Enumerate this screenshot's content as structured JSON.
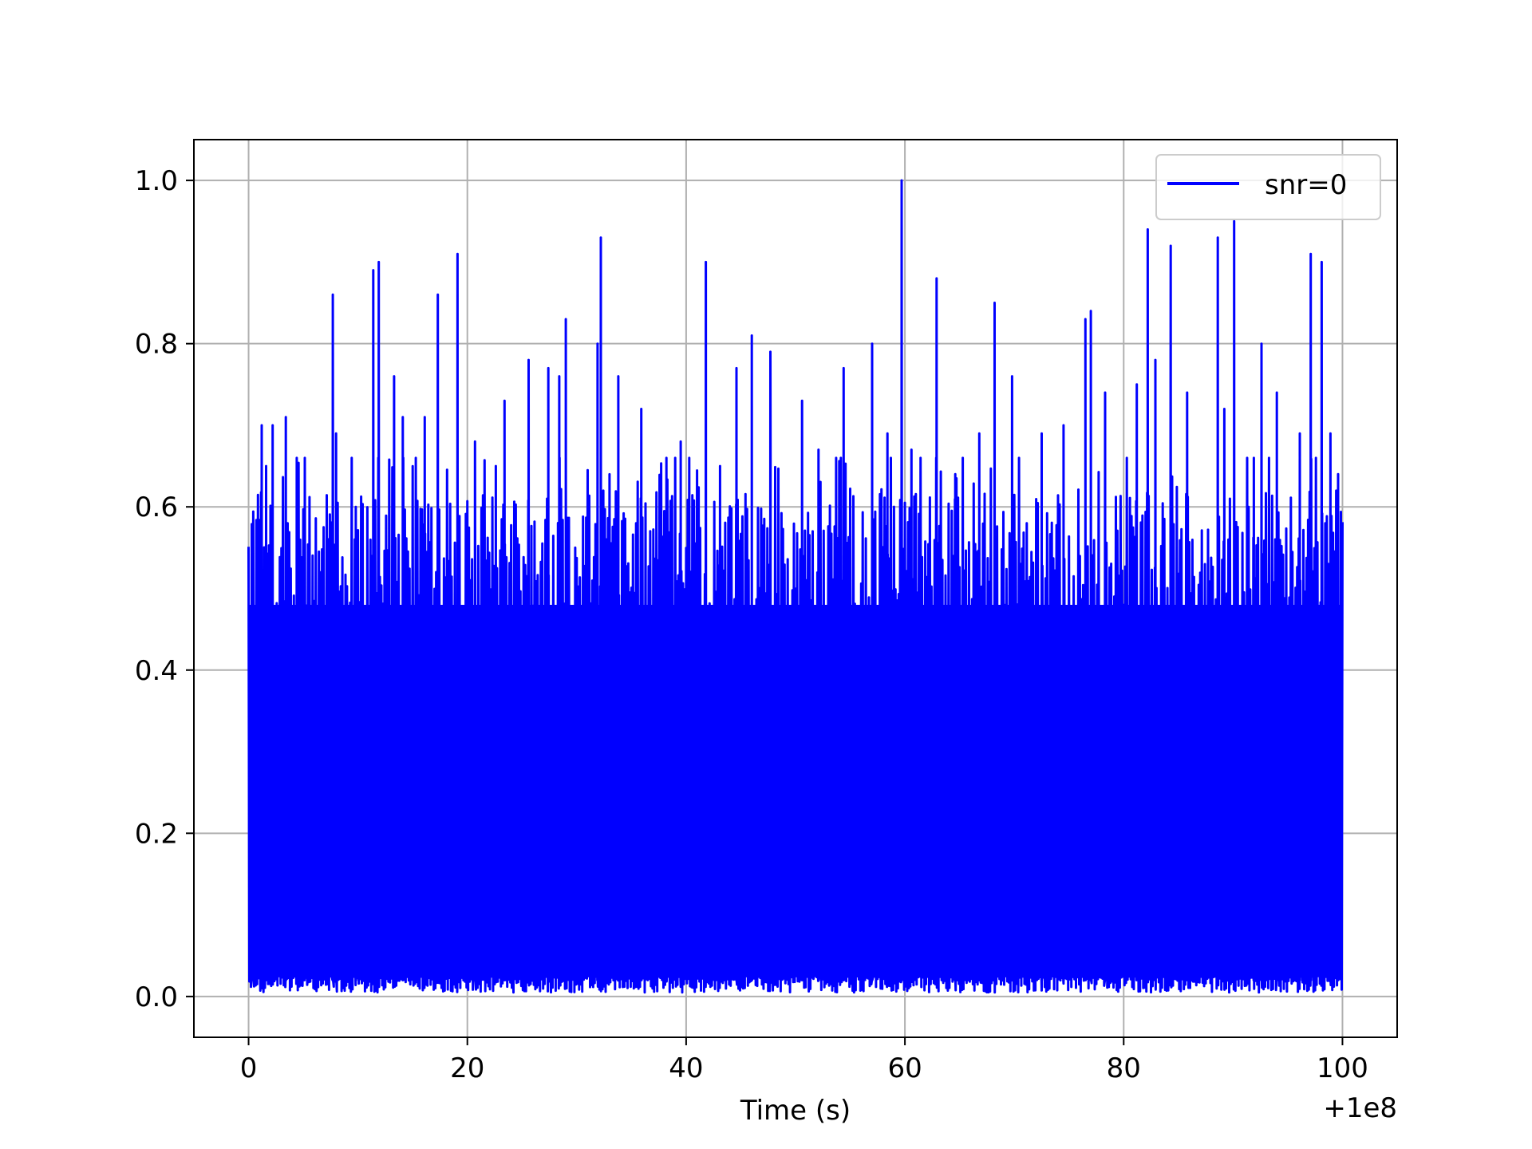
{
  "chart_data": {
    "type": "line",
    "title": "",
    "xlabel": "Time (s)",
    "ylabel": "",
    "x_offset_label": "+1e8",
    "xlim": [
      -5,
      105
    ],
    "ylim": [
      -0.05,
      1.05
    ],
    "x_ticks": [
      0,
      20,
      40,
      60,
      80,
      100
    ],
    "x_tick_labels": [
      "0",
      "20",
      "40",
      "60",
      "80",
      "100"
    ],
    "y_ticks": [
      0.0,
      0.2,
      0.4,
      0.6,
      0.8,
      1.0
    ],
    "y_tick_labels": [
      "0.0",
      "0.2",
      "0.4",
      "0.6",
      "0.8",
      "1.0"
    ],
    "grid": true,
    "legend_position": "top-right",
    "series": [
      {
        "name": "snr=0",
        "color": "#0000ff",
        "x_range": [
          0,
          100
        ],
        "y_min": 0.0,
        "y_max": 1.0,
        "peaks": [
          {
            "x": 0.3,
            "y": 0.53
          },
          {
            "x": 1.2,
            "y": 0.7
          },
          {
            "x": 1.6,
            "y": 0.65
          },
          {
            "x": 2.2,
            "y": 0.7
          },
          {
            "x": 3.4,
            "y": 0.71
          },
          {
            "x": 4.4,
            "y": 0.66
          },
          {
            "x": 5.1,
            "y": 0.59
          },
          {
            "x": 7.7,
            "y": 0.86
          },
          {
            "x": 8.0,
            "y": 0.69
          },
          {
            "x": 9.8,
            "y": 0.6
          },
          {
            "x": 11.4,
            "y": 0.89
          },
          {
            "x": 11.9,
            "y": 0.9
          },
          {
            "x": 13.3,
            "y": 0.76
          },
          {
            "x": 14.1,
            "y": 0.71
          },
          {
            "x": 16.1,
            "y": 0.71
          },
          {
            "x": 17.3,
            "y": 0.86
          },
          {
            "x": 19.1,
            "y": 0.91
          },
          {
            "x": 20.7,
            "y": 0.68
          },
          {
            "x": 22.6,
            "y": 0.65
          },
          {
            "x": 23.4,
            "y": 0.73
          },
          {
            "x": 25.6,
            "y": 0.78
          },
          {
            "x": 27.4,
            "y": 0.77
          },
          {
            "x": 28.4,
            "y": 0.76
          },
          {
            "x": 29.0,
            "y": 0.83
          },
          {
            "x": 31.9,
            "y": 0.8
          },
          {
            "x": 32.2,
            "y": 0.93
          },
          {
            "x": 33.8,
            "y": 0.76
          },
          {
            "x": 35.9,
            "y": 0.72
          },
          {
            "x": 38.2,
            "y": 0.66
          },
          {
            "x": 39.5,
            "y": 0.68
          },
          {
            "x": 41.8,
            "y": 0.9
          },
          {
            "x": 43.1,
            "y": 0.65
          },
          {
            "x": 44.6,
            "y": 0.77
          },
          {
            "x": 46.0,
            "y": 0.81
          },
          {
            "x": 47.7,
            "y": 0.79
          },
          {
            "x": 50.6,
            "y": 0.73
          },
          {
            "x": 52.1,
            "y": 0.67
          },
          {
            "x": 54.4,
            "y": 0.77
          },
          {
            "x": 57.0,
            "y": 0.8
          },
          {
            "x": 58.4,
            "y": 0.69
          },
          {
            "x": 59.7,
            "y": 1.0
          },
          {
            "x": 60.6,
            "y": 0.67
          },
          {
            "x": 62.9,
            "y": 0.88
          },
          {
            "x": 64.6,
            "y": 0.64
          },
          {
            "x": 66.8,
            "y": 0.69
          },
          {
            "x": 68.2,
            "y": 0.85
          },
          {
            "x": 69.8,
            "y": 0.76
          },
          {
            "x": 72.5,
            "y": 0.69
          },
          {
            "x": 74.5,
            "y": 0.7
          },
          {
            "x": 76.5,
            "y": 0.83
          },
          {
            "x": 77.0,
            "y": 0.84
          },
          {
            "x": 78.3,
            "y": 0.74
          },
          {
            "x": 81.2,
            "y": 0.75
          },
          {
            "x": 82.2,
            "y": 0.94
          },
          {
            "x": 82.9,
            "y": 0.78
          },
          {
            "x": 84.3,
            "y": 0.92
          },
          {
            "x": 85.8,
            "y": 0.74
          },
          {
            "x": 88.6,
            "y": 0.93
          },
          {
            "x": 89.2,
            "y": 0.72
          },
          {
            "x": 90.1,
            "y": 0.95
          },
          {
            "x": 91.9,
            "y": 0.66
          },
          {
            "x": 92.6,
            "y": 0.8
          },
          {
            "x": 94.0,
            "y": 0.74
          },
          {
            "x": 96.1,
            "y": 0.69
          },
          {
            "x": 97.1,
            "y": 0.91
          },
          {
            "x": 98.1,
            "y": 0.9
          },
          {
            "x": 98.9,
            "y": 0.69
          },
          {
            "x": 99.6,
            "y": 0.64
          }
        ]
      }
    ]
  }
}
